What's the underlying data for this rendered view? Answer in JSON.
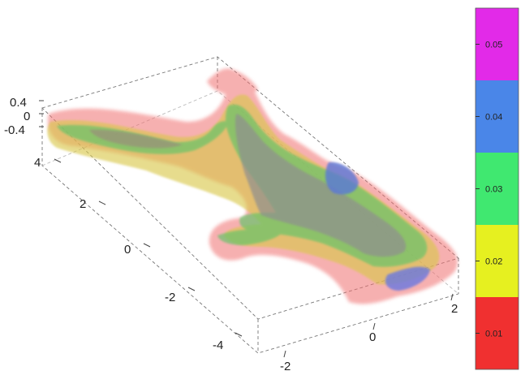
{
  "chart_data": {
    "type": "isosurface-3d",
    "axes": {
      "x": {
        "ticks": [
          "-2",
          "0",
          "2"
        ],
        "range": [
          -2.6,
          2.6
        ]
      },
      "y": {
        "ticks": [
          "-4",
          "-2",
          "0",
          "2",
          "4"
        ],
        "range": [
          -4.8,
          4.8
        ]
      },
      "z": {
        "ticks": [
          "0.4",
          "0",
          "-0.4"
        ],
        "range": [
          -0.5,
          0.5
        ]
      }
    },
    "colorbar": {
      "ticks": [
        "0.05",
        "0.04",
        "0.03",
        "0.02",
        "0.01"
      ],
      "bands": [
        {
          "min": 0.005,
          "max": 0.015,
          "color": "#f03030"
        },
        {
          "min": 0.015,
          "max": 0.025,
          "color": "#e6f020"
        },
        {
          "min": 0.025,
          "max": 0.035,
          "color": "#40e870"
        },
        {
          "min": 0.035,
          "max": 0.045,
          "color": "#4a86e8"
        },
        {
          "min": 0.045,
          "max": 0.055,
          "color": "#e22ae8"
        }
      ]
    },
    "isosurface_levels": [
      0.01,
      0.02,
      0.03,
      0.04
    ],
    "grid": false,
    "bounding_box": "dashed"
  }
}
